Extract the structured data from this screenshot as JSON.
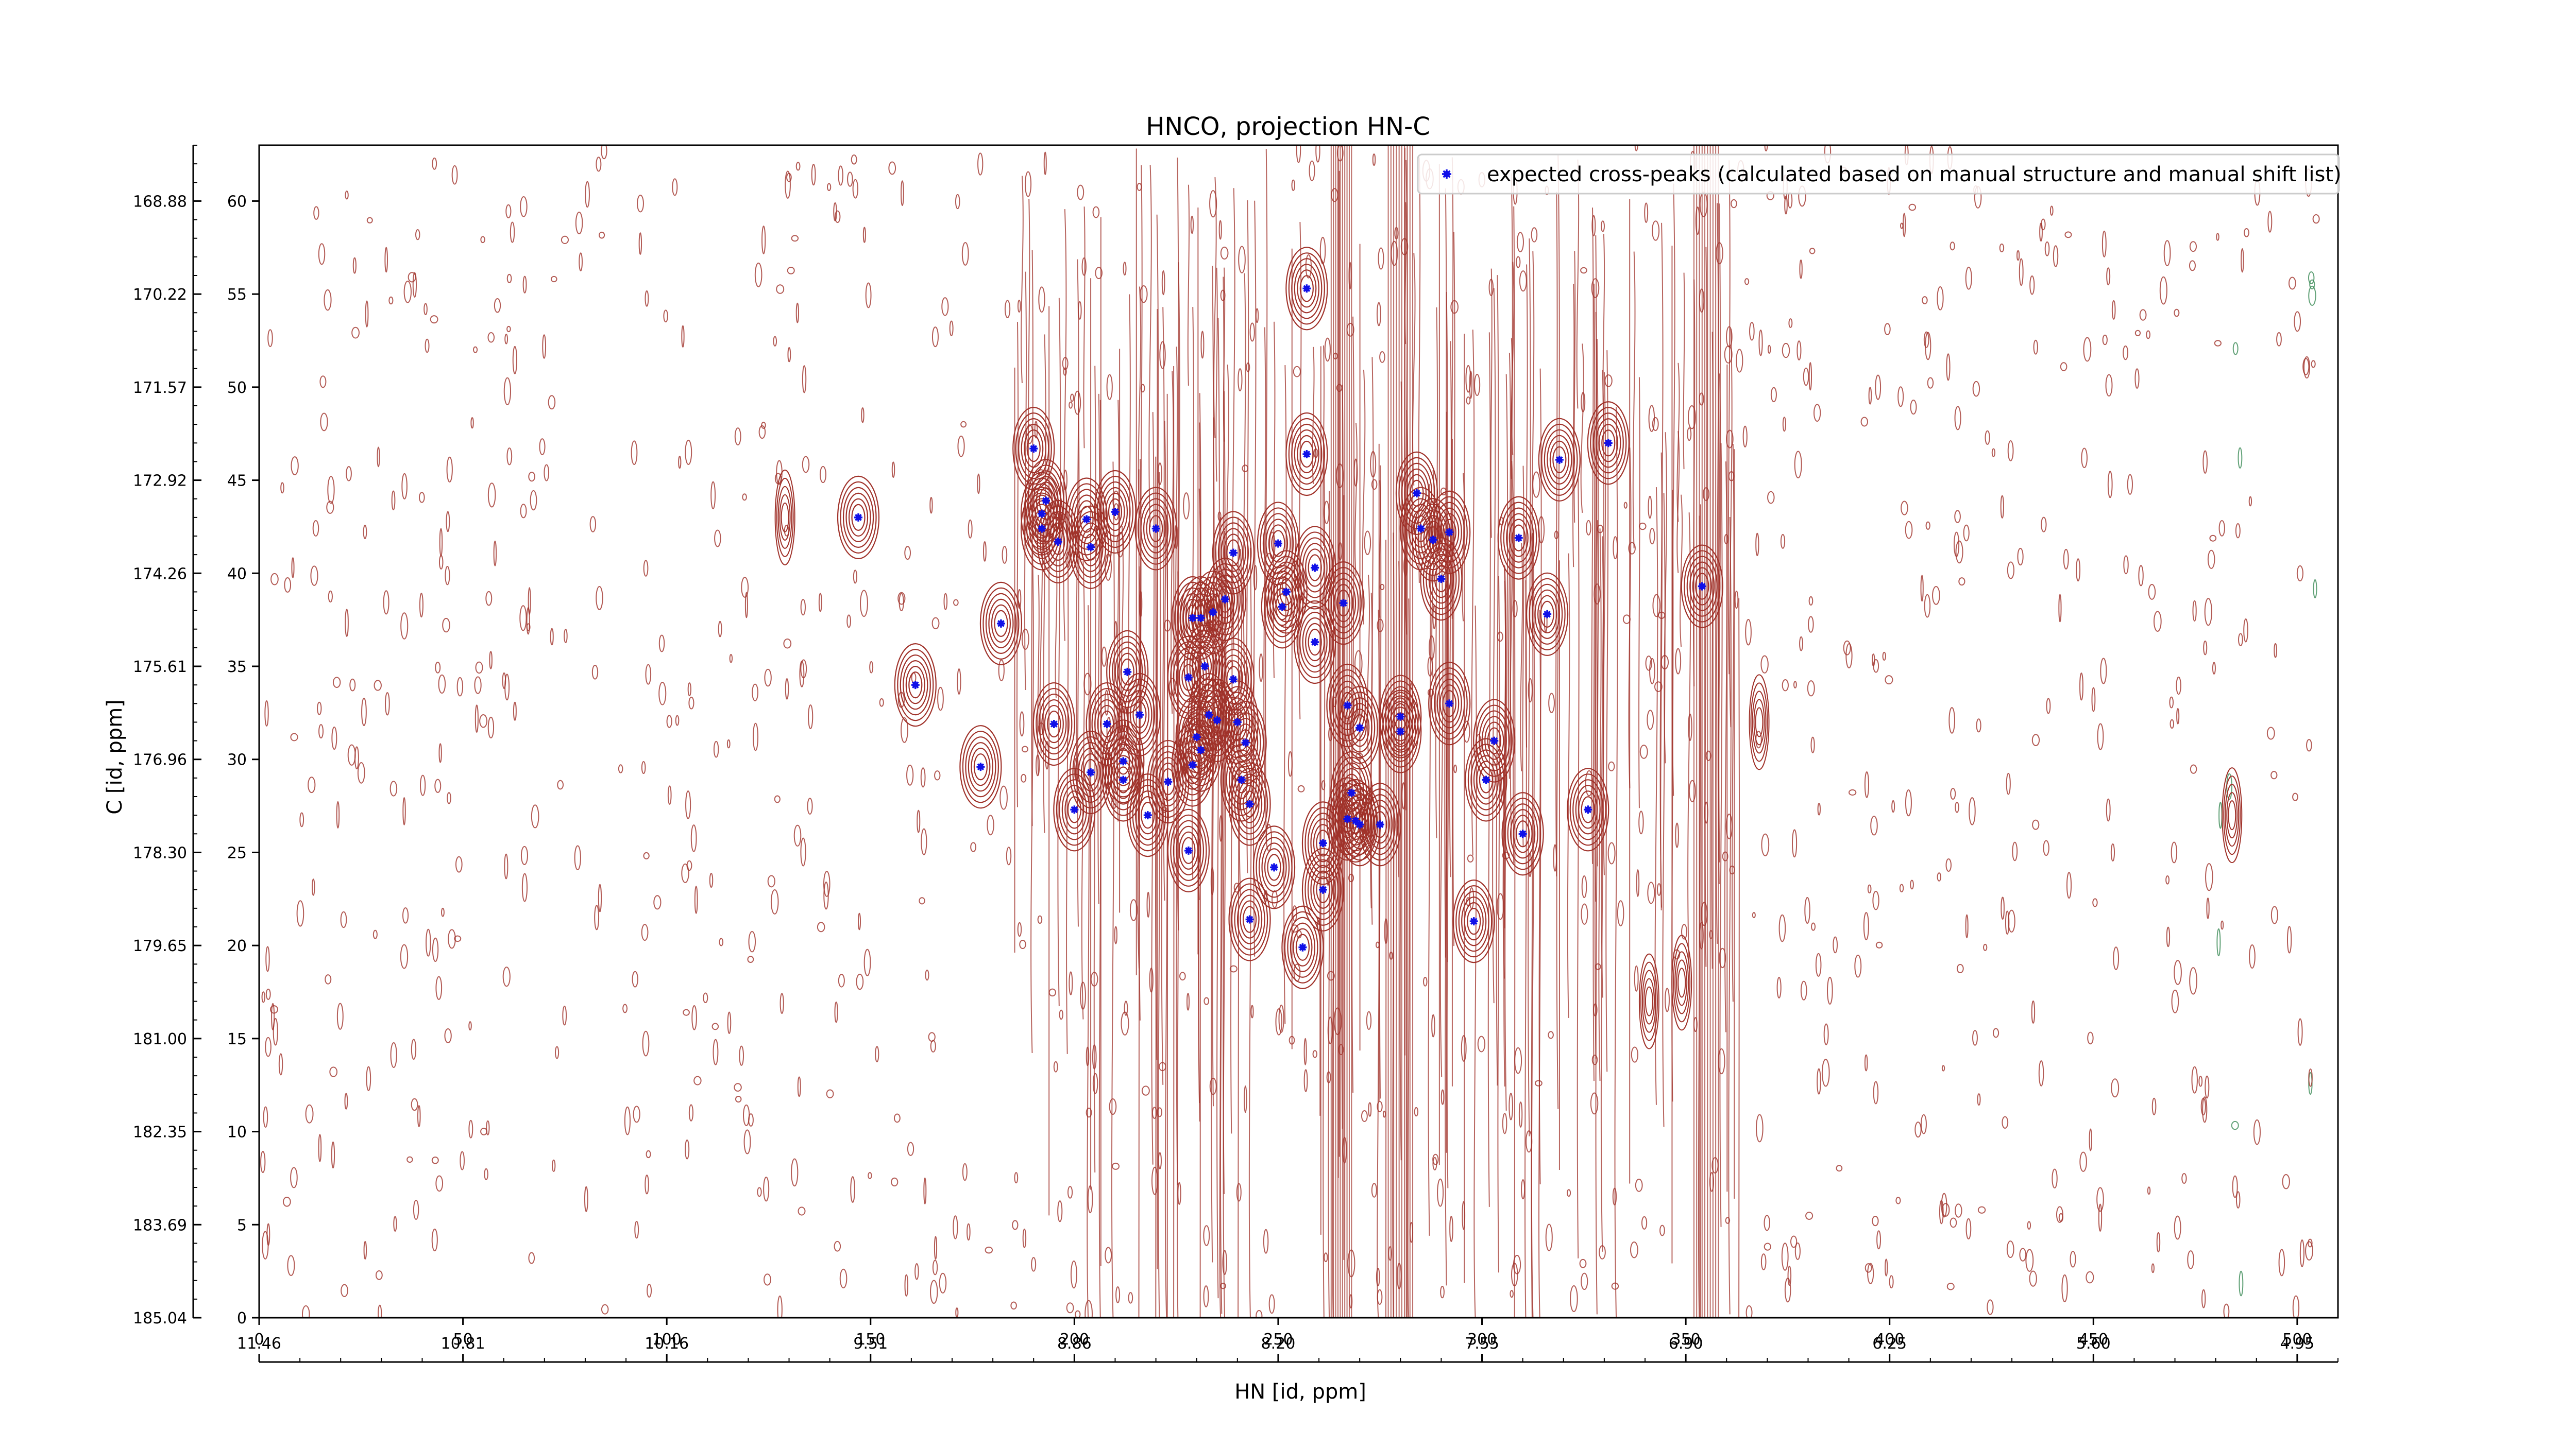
{
  "chart_data": {
    "type": "scatter",
    "title": "HNCO, projection HN-C",
    "xlabel": "HN [id, ppm]",
    "ylabel": "C [id, ppm]",
    "x_index_ticks": [
      "0",
      "50",
      "100",
      "150",
      "200",
      "250",
      "300",
      "350",
      "400",
      "450",
      "500"
    ],
    "x_ppm_ticks": [
      "11.46",
      "10.81",
      "10.16",
      "9.51",
      "8.86",
      "8.20",
      "7.55",
      "6.90",
      "6.25",
      "5.60",
      "4.95"
    ],
    "y_index_ticks": [
      "0",
      "5",
      "10",
      "15",
      "20",
      "25",
      "30",
      "35",
      "40",
      "45",
      "50",
      "55",
      "60"
    ],
    "y_ppm_ticks": [
      "185.04",
      "183.69",
      "182.35",
      "181.00",
      "179.65",
      "178.30",
      "176.96",
      "175.61",
      "174.26",
      "172.92",
      "171.57",
      "170.22",
      "168.88"
    ],
    "xlim": [
      0,
      510
    ],
    "ylim": [
      0,
      63
    ],
    "grid": false,
    "legend_position": "top-right",
    "colors": {
      "contour": "#a0322a",
      "negative_contour": "#3a8a55",
      "peaks": "#1010e8"
    },
    "legend": {
      "label": "expected cross-peaks (calculated based on manual structure and manual shift list)"
    },
    "series": [
      {
        "name": "expected cross-peaks (calculated based on manual structure and manual shift list)",
        "points": [
          [
            257,
            55.3
          ],
          [
            257,
            46.4
          ],
          [
            190,
            46.7
          ],
          [
            193,
            43.9
          ],
          [
            192,
            43.2
          ],
          [
            192,
            42.4
          ],
          [
            196,
            41.7
          ],
          [
            203,
            42.9
          ],
          [
            204,
            41.4
          ],
          [
            210,
            43.3
          ],
          [
            220,
            42.4
          ],
          [
            147,
            43.0
          ],
          [
            182,
            37.3
          ],
          [
            161,
            34.0
          ],
          [
            177,
            29.6
          ],
          [
            195,
            31.9
          ],
          [
            200,
            27.3
          ],
          [
            204,
            29.3
          ],
          [
            208,
            31.9
          ],
          [
            212,
            29.9
          ],
          [
            212,
            28.9
          ],
          [
            213,
            34.7
          ],
          [
            216,
            32.4
          ],
          [
            218,
            27.0
          ],
          [
            223,
            28.8
          ],
          [
            228,
            25.1
          ],
          [
            228,
            34.4
          ],
          [
            229,
            29.7
          ],
          [
            229,
            37.6
          ],
          [
            230,
            31.2
          ],
          [
            231,
            37.6
          ],
          [
            231,
            30.5
          ],
          [
            232,
            35.0
          ],
          [
            233,
            32.4
          ],
          [
            234,
            37.9
          ],
          [
            235,
            32.1
          ],
          [
            237,
            38.6
          ],
          [
            239,
            41.1
          ],
          [
            239,
            34.3
          ],
          [
            240,
            32.0
          ],
          [
            241,
            28.9
          ],
          [
            242,
            30.9
          ],
          [
            243,
            27.6
          ],
          [
            243,
            21.4
          ],
          [
            249,
            24.2
          ],
          [
            250,
            41.6
          ],
          [
            251,
            38.2
          ],
          [
            252,
            39.0
          ],
          [
            256,
            19.9
          ],
          [
            259,
            40.3
          ],
          [
            259,
            36.3
          ],
          [
            261,
            25.5
          ],
          [
            261,
            23.0
          ],
          [
            266,
            38.4
          ],
          [
            267,
            32.9
          ],
          [
            267,
            26.8
          ],
          [
            268,
            28.2
          ],
          [
            269,
            26.7
          ],
          [
            270,
            26.5
          ],
          [
            270,
            31.7
          ],
          [
            275,
            26.5
          ],
          [
            280,
            32.3
          ],
          [
            280,
            31.5
          ],
          [
            284,
            44.3
          ],
          [
            285,
            42.4
          ],
          [
            288,
            41.8
          ],
          [
            290,
            39.7
          ],
          [
            292,
            42.2
          ],
          [
            292,
            33.0
          ],
          [
            298,
            21.3
          ],
          [
            301,
            28.9
          ],
          [
            303,
            31.0
          ],
          [
            309,
            41.9
          ],
          [
            310,
            26.0
          ],
          [
            316,
            37.8
          ],
          [
            319,
            46.1
          ],
          [
            326,
            27.3
          ],
          [
            331,
            47.0
          ],
          [
            354,
            39.3
          ]
        ]
      }
    ]
  }
}
